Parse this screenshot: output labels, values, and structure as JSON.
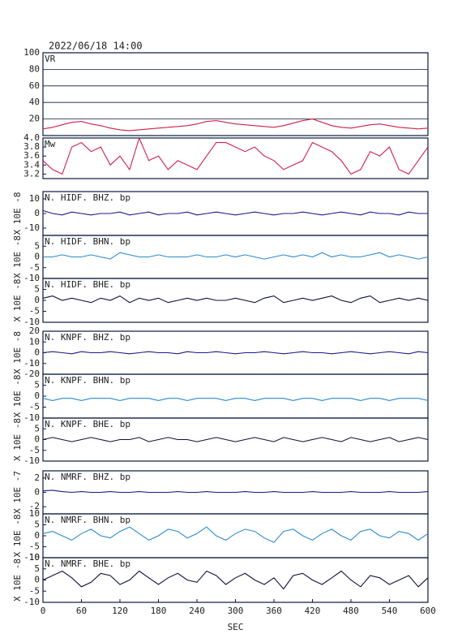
{
  "chart_data": [
    {
      "type": "line",
      "title": "2022/06/18 14:00",
      "label": "VR",
      "color": "#d0204a",
      "grid": true,
      "x": [
        0,
        15,
        30,
        45,
        60,
        75,
        90,
        105,
        120,
        135,
        150,
        165,
        180,
        195,
        210,
        225,
        240,
        255,
        270,
        285,
        300,
        315,
        330,
        345,
        360,
        375,
        390,
        405,
        420,
        435,
        450,
        465,
        480,
        495,
        510,
        525,
        540,
        555,
        570,
        585,
        600
      ],
      "values": [
        8,
        10,
        13,
        16,
        17,
        14,
        12,
        9,
        7,
        6,
        7,
        8,
        9,
        10,
        11,
        12,
        14,
        17,
        18,
        16,
        14,
        13,
        12,
        11,
        10,
        12,
        15,
        18,
        20,
        16,
        12,
        10,
        9,
        11,
        13,
        14,
        12,
        10,
        9,
        8,
        9
      ],
      "xlim": [
        0,
        600
      ],
      "ylim": [
        0,
        100
      ],
      "yticks": [
        20,
        40,
        60,
        80,
        100
      ]
    },
    {
      "type": "line",
      "label": "Mw",
      "color": "#d0204a",
      "x": [
        0,
        15,
        30,
        45,
        60,
        75,
        90,
        105,
        120,
        135,
        150,
        165,
        180,
        195,
        210,
        225,
        240,
        255,
        270,
        285,
        300,
        315,
        330,
        345,
        360,
        375,
        390,
        405,
        420,
        435,
        450,
        465,
        480,
        495,
        510,
        525,
        540,
        555,
        570,
        585,
        600
      ],
      "values": [
        3.5,
        3.3,
        3.2,
        3.8,
        3.9,
        3.7,
        3.8,
        3.4,
        3.6,
        3.3,
        4.0,
        3.5,
        3.6,
        3.3,
        3.5,
        3.4,
        3.3,
        3.6,
        3.9,
        3.9,
        3.8,
        3.7,
        3.8,
        3.6,
        3.5,
        3.3,
        3.4,
        3.5,
        3.9,
        3.8,
        3.7,
        3.5,
        3.2,
        3.3,
        3.7,
        3.6,
        3.8,
        3.3,
        3.2,
        3.5,
        3.8
      ],
      "xlim": [
        0,
        600
      ],
      "ylim": [
        3.1,
        4.0
      ],
      "yticks": [
        3.2,
        3.4,
        3.6,
        3.8,
        {
          "value": 4.0,
          "label": "4.0"
        }
      ]
    },
    {
      "type": "line",
      "label": "N. HIDF. BHZ. bp",
      "y_label": "X 10E -8",
      "color": "#1a1a8c",
      "x": [
        0,
        15,
        30,
        45,
        60,
        75,
        90,
        105,
        120,
        135,
        150,
        165,
        180,
        195,
        210,
        225,
        240,
        255,
        270,
        285,
        300,
        315,
        330,
        345,
        360,
        375,
        390,
        405,
        420,
        435,
        450,
        465,
        480,
        495,
        510,
        525,
        540,
        555,
        570,
        585,
        600
      ],
      "values": [
        2,
        0,
        -1,
        1,
        0,
        -1,
        0,
        0,
        1,
        -1,
        0,
        1,
        -1,
        0,
        0,
        1,
        -1,
        0,
        1,
        0,
        -1,
        0,
        1,
        0,
        -1,
        0,
        0,
        1,
        0,
        -1,
        0,
        1,
        0,
        -1,
        1,
        0,
        0,
        -1,
        1,
        0,
        0
      ],
      "xlim": [
        0,
        600
      ],
      "ylim": [
        -15,
        15
      ],
      "yticks": [
        -10,
        0,
        10
      ]
    },
    {
      "type": "line",
      "label": "N. HIDF. BHN. bp",
      "y_label": "X 10E -8",
      "color": "#2a8ad0",
      "x": [
        0,
        15,
        30,
        45,
        60,
        75,
        90,
        105,
        120,
        135,
        150,
        165,
        180,
        195,
        210,
        225,
        240,
        255,
        270,
        285,
        300,
        315,
        330,
        345,
        360,
        375,
        390,
        405,
        420,
        435,
        450,
        465,
        480,
        495,
        510,
        525,
        540,
        555,
        570,
        585,
        600
      ],
      "values": [
        0,
        0,
        1,
        0,
        0,
        1,
        0,
        -1,
        2,
        1,
        0,
        0,
        1,
        0,
        0,
        0,
        1,
        0,
        0,
        1,
        0,
        1,
        0,
        -1,
        0,
        1,
        0,
        1,
        0,
        2,
        0,
        1,
        0,
        0,
        1,
        2,
        0,
        1,
        0,
        -1,
        0
      ],
      "xlim": [
        0,
        600
      ],
      "ylim": [
        -10,
        10
      ],
      "yticks": [
        -10,
        -5,
        0,
        5
      ]
    },
    {
      "type": "line",
      "label": "N. HIDF. BHE. bp",
      "y_label": "X 10E -8",
      "color": "#101040",
      "x": [
        0,
        15,
        30,
        45,
        60,
        75,
        90,
        105,
        120,
        135,
        150,
        165,
        180,
        195,
        210,
        225,
        240,
        255,
        270,
        285,
        300,
        315,
        330,
        345,
        360,
        375,
        390,
        405,
        420,
        435,
        450,
        465,
        480,
        495,
        510,
        525,
        540,
        555,
        570,
        585,
        600
      ],
      "values": [
        1,
        2,
        0,
        1,
        0,
        -1,
        1,
        0,
        2,
        -1,
        1,
        0,
        1,
        -1,
        0,
        1,
        0,
        1,
        0,
        0,
        1,
        0,
        -1,
        1,
        2,
        -1,
        0,
        1,
        0,
        1,
        2,
        0,
        -1,
        1,
        2,
        -1,
        0,
        1,
        0,
        1,
        0
      ],
      "xlim": [
        0,
        600
      ],
      "ylim": [
        -10,
        10
      ],
      "yticks": [
        -10,
        -5,
        0,
        5
      ]
    },
    {
      "type": "line",
      "label": "N. KNPF. BHZ. bp",
      "y_label": "X 10E -8",
      "color": "#1a1a8c",
      "x": [
        0,
        15,
        30,
        45,
        60,
        75,
        90,
        105,
        120,
        135,
        150,
        165,
        180,
        195,
        210,
        225,
        240,
        255,
        270,
        285,
        300,
        315,
        330,
        345,
        360,
        375,
        390,
        405,
        420,
        435,
        450,
        465,
        480,
        495,
        510,
        525,
        540,
        555,
        570,
        585,
        600
      ],
      "values": [
        0,
        1,
        0,
        -1,
        1,
        0,
        0,
        1,
        0,
        -1,
        0,
        1,
        0,
        0,
        -1,
        1,
        0,
        0,
        1,
        0,
        -1,
        0,
        0,
        1,
        0,
        -1,
        0,
        1,
        0,
        0,
        -1,
        0,
        1,
        0,
        -1,
        0,
        1,
        0,
        -1,
        1,
        0
      ],
      "xlim": [
        0,
        600
      ],
      "ylim": [
        -20,
        20
      ],
      "yticks": [
        -20,
        -10,
        0,
        10,
        20
      ]
    },
    {
      "type": "line",
      "label": "N. KNPF. BHN. bp",
      "y_label": "X 10E -8",
      "color": "#2a8ad0",
      "x": [
        0,
        15,
        30,
        45,
        60,
        75,
        90,
        105,
        120,
        135,
        150,
        165,
        180,
        195,
        210,
        225,
        240,
        255,
        270,
        285,
        300,
        315,
        330,
        345,
        360,
        375,
        390,
        405,
        420,
        435,
        450,
        465,
        480,
        495,
        510,
        525,
        540,
        555,
        570,
        585,
        600
      ],
      "values": [
        -1,
        -2,
        -1,
        -1,
        -2,
        -1,
        -1,
        -1,
        -2,
        -1,
        -1,
        -1,
        -2,
        -1,
        -1,
        -2,
        -1,
        -1,
        -1,
        -2,
        -1,
        -1,
        -2,
        -1,
        -1,
        -1,
        -2,
        -1,
        -1,
        -2,
        -1,
        -1,
        -1,
        -2,
        -1,
        -1,
        -2,
        -1,
        -1,
        -1,
        -2
      ],
      "xlim": [
        0,
        600
      ],
      "ylim": [
        -10,
        10
      ],
      "yticks": [
        -10,
        -5,
        0,
        5
      ]
    },
    {
      "type": "line",
      "label": "N. KNPF. BHE. bp",
      "y_label": "X 10E -8",
      "color": "#101040",
      "x": [
        0,
        15,
        30,
        45,
        60,
        75,
        90,
        105,
        120,
        135,
        150,
        165,
        180,
        195,
        210,
        225,
        240,
        255,
        270,
        285,
        300,
        315,
        330,
        345,
        360,
        375,
        390,
        405,
        420,
        435,
        450,
        465,
        480,
        495,
        510,
        525,
        540,
        555,
        570,
        585,
        600
      ],
      "values": [
        0,
        1,
        0,
        -1,
        0,
        1,
        0,
        -1,
        0,
        0,
        1,
        -1,
        0,
        1,
        0,
        0,
        -1,
        0,
        1,
        0,
        -1,
        0,
        1,
        0,
        -1,
        1,
        0,
        -1,
        0,
        1,
        0,
        -1,
        1,
        0,
        -1,
        0,
        1,
        -1,
        0,
        1,
        0
      ],
      "xlim": [
        0,
        600
      ],
      "ylim": [
        -10,
        10
      ],
      "yticks": [
        -10,
        -5,
        0,
        5
      ]
    },
    {
      "type": "line",
      "label": "N. NMRF. BHZ. bp",
      "y_label": "X 10E -7",
      "color": "#1a1a8c",
      "x": [
        0,
        15,
        30,
        45,
        60,
        75,
        90,
        105,
        120,
        135,
        150,
        165,
        180,
        195,
        210,
        225,
        240,
        255,
        270,
        285,
        300,
        315,
        330,
        345,
        360,
        375,
        390,
        405,
        420,
        435,
        450,
        465,
        480,
        495,
        510,
        525,
        540,
        555,
        570,
        585,
        600
      ],
      "values": [
        0.2,
        0.3,
        0.1,
        0,
        0.1,
        0,
        0,
        0.1,
        0,
        0,
        0.1,
        0,
        0,
        0,
        0.1,
        0,
        0,
        0.1,
        0,
        0,
        0,
        0.1,
        0,
        0,
        0.1,
        0,
        0,
        0,
        0.1,
        0,
        0,
        0,
        0.1,
        0,
        0,
        0,
        0.1,
        0,
        0,
        0,
        0.1
      ],
      "xlim": [
        0,
        600
      ],
      "ylim": [
        -3,
        3
      ],
      "yticks": [
        -2,
        0,
        2
      ]
    },
    {
      "type": "line",
      "label": "N. NMRF. BHN. bp",
      "y_label": "X 10E -8",
      "color": "#2a8ad0",
      "x": [
        0,
        15,
        30,
        45,
        60,
        75,
        90,
        105,
        120,
        135,
        150,
        165,
        180,
        195,
        210,
        225,
        240,
        255,
        270,
        285,
        300,
        315,
        330,
        345,
        360,
        375,
        390,
        405,
        420,
        435,
        450,
        465,
        480,
        495,
        510,
        525,
        540,
        555,
        570,
        585,
        600
      ],
      "values": [
        1,
        2,
        0,
        -2,
        1,
        3,
        0,
        -1,
        2,
        4,
        1,
        -2,
        0,
        3,
        2,
        -1,
        1,
        4,
        0,
        -2,
        1,
        3,
        2,
        -1,
        -3,
        2,
        3,
        0,
        -2,
        1,
        3,
        0,
        -2,
        2,
        3,
        0,
        -1,
        2,
        1,
        -2,
        1
      ],
      "xlim": [
        0,
        600
      ],
      "ylim": [
        -10,
        10
      ],
      "yticks": [
        -10,
        -5,
        0,
        5,
        10
      ]
    },
    {
      "type": "line",
      "label": "N. NMRF. BHE. bp",
      "y_label": "X 10E -8",
      "color": "#101040",
      "x_label": "SEC",
      "x": [
        0,
        15,
        30,
        45,
        60,
        75,
        90,
        105,
        120,
        135,
        150,
        165,
        180,
        195,
        210,
        225,
        240,
        255,
        270,
        285,
        300,
        315,
        330,
        345,
        360,
        375,
        390,
        405,
        420,
        435,
        450,
        465,
        480,
        495,
        510,
        525,
        540,
        555,
        570,
        585,
        600
      ],
      "values": [
        0,
        2,
        4,
        1,
        -3,
        -1,
        3,
        2,
        -2,
        0,
        4,
        1,
        -2,
        1,
        3,
        0,
        -1,
        4,
        2,
        -2,
        1,
        3,
        0,
        -2,
        1,
        -4,
        2,
        3,
        0,
        -2,
        1,
        4,
        0,
        -3,
        2,
        1,
        -2,
        0,
        2,
        -3,
        1
      ],
      "xlim": [
        0,
        600
      ],
      "ylim": [
        -10,
        10
      ],
      "yticks": [
        -10,
        -5,
        0,
        5,
        10
      ],
      "xticks": [
        0,
        60,
        120,
        180,
        240,
        300,
        360,
        420,
        480,
        540,
        600
      ]
    }
  ]
}
